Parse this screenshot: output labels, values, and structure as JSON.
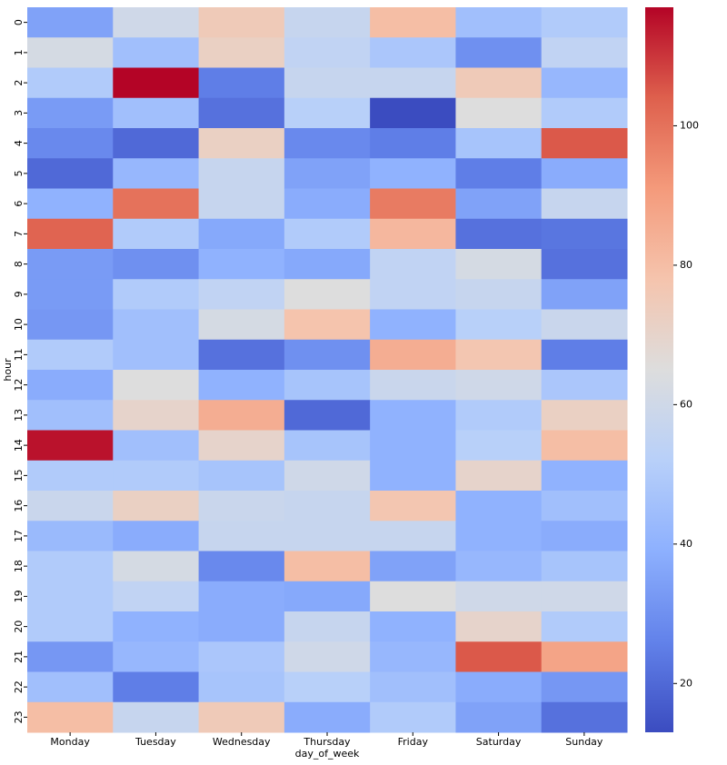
{
  "chart_data": {
    "type": "heatmap",
    "x_label": "day_of_week",
    "y_label": "hour",
    "x_categories": [
      "Monday",
      "Tuesday",
      "Wednesday",
      "Thursday",
      "Friday",
      "Saturday",
      "Sunday"
    ],
    "y_categories": [
      "0",
      "1",
      "2",
      "3",
      "4",
      "5",
      "6",
      "7",
      "8",
      "9",
      "10",
      "11",
      "12",
      "13",
      "14",
      "15",
      "16",
      "17",
      "18",
      "19",
      "20",
      "21",
      "22",
      "23"
    ],
    "values": [
      [
        35,
        60,
        75,
        57,
        80,
        45,
        50
      ],
      [
        62,
        45,
        72,
        55,
        48,
        30,
        55
      ],
      [
        50,
        117,
        25,
        57,
        57,
        75,
        42
      ],
      [
        33,
        45,
        22,
        52,
        13,
        65,
        50
      ],
      [
        28,
        20,
        72,
        28,
        25,
        47,
        105
      ],
      [
        20,
        42,
        57,
        35,
        40,
        25,
        38
      ],
      [
        40,
        100,
        57,
        38,
        98,
        35,
        57
      ],
      [
        103,
        50,
        37,
        50,
        82,
        22,
        23
      ],
      [
        33,
        30,
        40,
        37,
        55,
        62,
        22
      ],
      [
        33,
        50,
        55,
        65,
        55,
        57,
        35
      ],
      [
        32,
        45,
        62,
        78,
        40,
        52,
        58
      ],
      [
        50,
        45,
        22,
        30,
        85,
        77,
        25
      ],
      [
        38,
        65,
        40,
        47,
        58,
        60,
        48
      ],
      [
        45,
        70,
        85,
        20,
        40,
        50,
        72
      ],
      [
        115,
        45,
        70,
        47,
        40,
        52,
        80
      ],
      [
        50,
        50,
        47,
        60,
        40,
        70,
        40
      ],
      [
        58,
        72,
        58,
        57,
        77,
        40,
        45
      ],
      [
        43,
        38,
        57,
        57,
        57,
        40,
        38
      ],
      [
        50,
        62,
        28,
        80,
        35,
        42,
        47
      ],
      [
        50,
        55,
        38,
        37,
        65,
        60,
        60
      ],
      [
        50,
        40,
        38,
        57,
        40,
        70,
        50
      ],
      [
        32,
        42,
        48,
        60,
        42,
        105,
        88
      ],
      [
        45,
        25,
        47,
        52,
        45,
        38,
        32
      ],
      [
        80,
        57,
        75,
        38,
        50,
        35,
        22
      ]
    ],
    "colormap": "coolwarm",
    "clim": [
      13,
      117
    ],
    "colorbar_ticks": [
      20,
      40,
      60,
      80,
      100
    ]
  }
}
